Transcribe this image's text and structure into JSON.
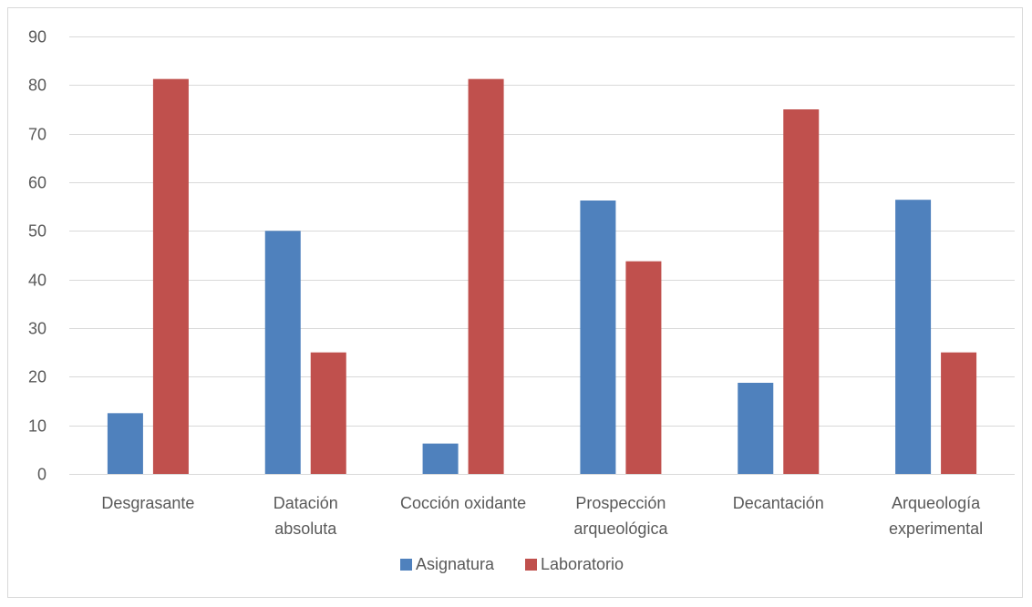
{
  "chart_data": {
    "type": "bar",
    "categories": [
      [
        "Desgrasante"
      ],
      [
        "Datación",
        "absoluta"
      ],
      [
        "Cocción oxidante"
      ],
      [
        "Prospección",
        "arqueológica"
      ],
      [
        "Decantación"
      ],
      [
        "Arqueología",
        "experimental"
      ]
    ],
    "series": [
      {
        "name": "Asignatura",
        "color": "#4f81bd",
        "values": [
          12.5,
          50,
          6.25,
          56.25,
          18.75,
          56.4
        ]
      },
      {
        "name": "Laboratorio",
        "color": "#c0504d",
        "values": [
          81.25,
          25,
          81.25,
          43.75,
          75,
          25
        ]
      }
    ],
    "ylim": [
      0,
      90
    ],
    "yticks": [
      0,
      10,
      20,
      30,
      40,
      50,
      60,
      70,
      80,
      90
    ],
    "grid": true,
    "legend_position": "bottom",
    "title": "",
    "xlabel": "",
    "ylabel": ""
  }
}
